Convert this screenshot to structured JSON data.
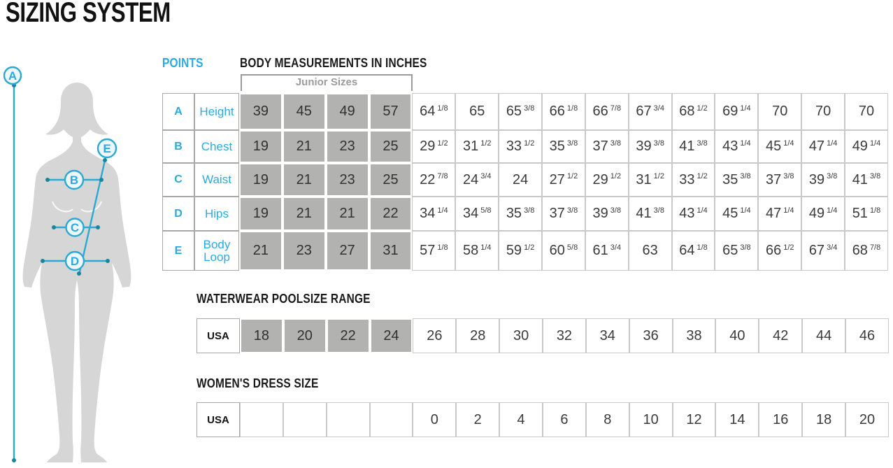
{
  "title": "SIZING SYSTEM",
  "points_label": "POINTS",
  "colors": {
    "accent_text": "#29abe2",
    "marker_line": "#2aa9d2",
    "marker_dot": "#17859e",
    "junior_cell": "#b2b2b0",
    "silhouette": "#d6d6d6",
    "header_text": "#1a1a1a",
    "number_text": "#3b3b3b",
    "bracket": "#9b9b9b"
  },
  "figure": {
    "points": [
      "A",
      "B",
      "C",
      "D",
      "E"
    ]
  },
  "body_table": {
    "header": "BODY MEASUREMENTS IN INCHES",
    "junior_label": "Junior Sizes",
    "rows": [
      {
        "point": "A",
        "label": "Height",
        "junior": [
          "39",
          "45",
          "49",
          "57"
        ],
        "values": [
          "64 1/8",
          "65",
          "65 3/8",
          "66 1/8",
          "66 7/8",
          "67 3/4",
          "68 1/2",
          "69 1/4",
          "70",
          "70",
          "70"
        ]
      },
      {
        "point": "B",
        "label": "Chest",
        "junior": [
          "19",
          "21",
          "23",
          "25"
        ],
        "values": [
          "29 1/2",
          "31 1/2",
          "33 1/2",
          "35 3/8",
          "37 3/8",
          "39 3/8",
          "41 3/8",
          "43 1/4",
          "45 1/4",
          "47 1/4",
          "49 1/4"
        ]
      },
      {
        "point": "C",
        "label": "Waist",
        "junior": [
          "19",
          "21",
          "23",
          "25"
        ],
        "values": [
          "22 7/8",
          "24 3/4",
          "24",
          "27 1/2",
          "29 1/2",
          "31 1/2",
          "33 1/2",
          "35 3/8",
          "37 3/8",
          "39 3/8",
          "41 3/8"
        ]
      },
      {
        "point": "D",
        "label": "Hips",
        "junior": [
          "19",
          "21",
          "21",
          "22"
        ],
        "values": [
          "34 1/4",
          "34 5/8",
          "35 3/8",
          "37 3/8",
          "39 3/8",
          "41 3/8",
          "43 1/4",
          "45 1/4",
          "47 1/4",
          "49 1/4",
          "51 1/8"
        ]
      },
      {
        "point": "E",
        "label": "Body Loop",
        "junior": [
          "21",
          "23",
          "27",
          "31"
        ],
        "values": [
          "57 1/8",
          "58 1/4",
          "59 1/2",
          "60 5/8",
          "61 3/4",
          "63",
          "64 1/8",
          "65 3/8",
          "66 1/2",
          "67 3/4",
          "68 7/8"
        ]
      }
    ]
  },
  "waterwear": {
    "header": "WATERWEAR POOLSIZE RANGE",
    "region_label": "USA",
    "junior": [
      "18",
      "20",
      "22",
      "24"
    ],
    "values": [
      "26",
      "28",
      "30",
      "32",
      "34",
      "36",
      "38",
      "40",
      "42",
      "44",
      "46"
    ]
  },
  "dress": {
    "header": "WOMEN'S DRESS SIZE",
    "region_label": "USA",
    "empty_count": 4,
    "values": [
      "0",
      "2",
      "4",
      "6",
      "8",
      "10",
      "12",
      "14",
      "16",
      "18",
      "20"
    ]
  }
}
